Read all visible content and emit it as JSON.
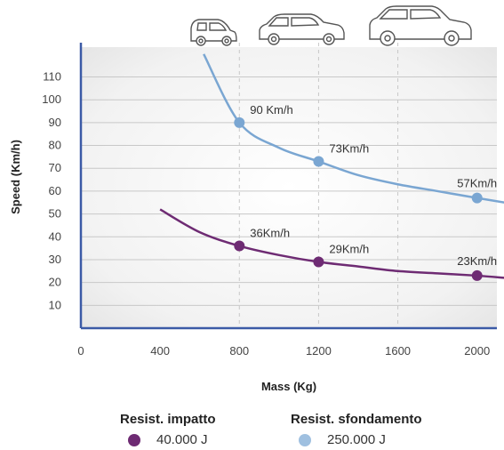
{
  "chart_data": {
    "type": "line",
    "xlabel": "Mass (Kg)",
    "ylabel": "Speed (Km/h)",
    "xlim": [
      0,
      2100
    ],
    "ylim": [
      0,
      125
    ],
    "x_ticks": [
      "0",
      "400",
      "800",
      "1200",
      "1600",
      "2000"
    ],
    "y_ticks": [
      "10",
      "20",
      "30",
      "40",
      "50",
      "60",
      "70",
      "80",
      "90",
      "100",
      "110"
    ],
    "grid": true,
    "legend_position": "bottom",
    "series": [
      {
        "name": "Resist. sfondamento",
        "energy": "250.000 J",
        "color": "#7aa6d2",
        "curve": [
          [
            620,
            120
          ],
          [
            800,
            90
          ],
          [
            1000,
            79
          ],
          [
            1200,
            73
          ],
          [
            1400,
            67
          ],
          [
            1600,
            63
          ],
          [
            1800,
            60
          ],
          [
            2000,
            57
          ],
          [
            2140,
            55
          ]
        ],
        "points": [
          {
            "x": 800,
            "y": 90,
            "label": "90 Km/h"
          },
          {
            "x": 1200,
            "y": 73,
            "label": "73Km/h"
          },
          {
            "x": 2000,
            "y": 57,
            "label": "57Km/h"
          }
        ]
      },
      {
        "name": "Resist. impatto",
        "energy": "40.000 J",
        "color": "#6e2b73",
        "curve": [
          [
            400,
            52
          ],
          [
            600,
            42
          ],
          [
            800,
            36
          ],
          [
            1000,
            32
          ],
          [
            1200,
            29
          ],
          [
            1400,
            27
          ],
          [
            1600,
            25
          ],
          [
            1800,
            24
          ],
          [
            2000,
            23
          ],
          [
            2140,
            22
          ]
        ],
        "points": [
          {
            "x": 800,
            "y": 36,
            "label": "36Km/h"
          },
          {
            "x": 1200,
            "y": 29,
            "label": "29Km/h"
          },
          {
            "x": 2000,
            "y": 23,
            "label": "23Km/h"
          }
        ]
      }
    ]
  },
  "legend": [
    {
      "title": "Resist. impatto",
      "value": "40.000 J",
      "color": "#6e2b73"
    },
    {
      "title": "Resist. sfondamento",
      "value": "250.000 J",
      "color": "#9fc0e0"
    }
  ],
  "icons": [
    "small-car-icon",
    "hatchback-car-icon",
    "suv-car-icon"
  ]
}
